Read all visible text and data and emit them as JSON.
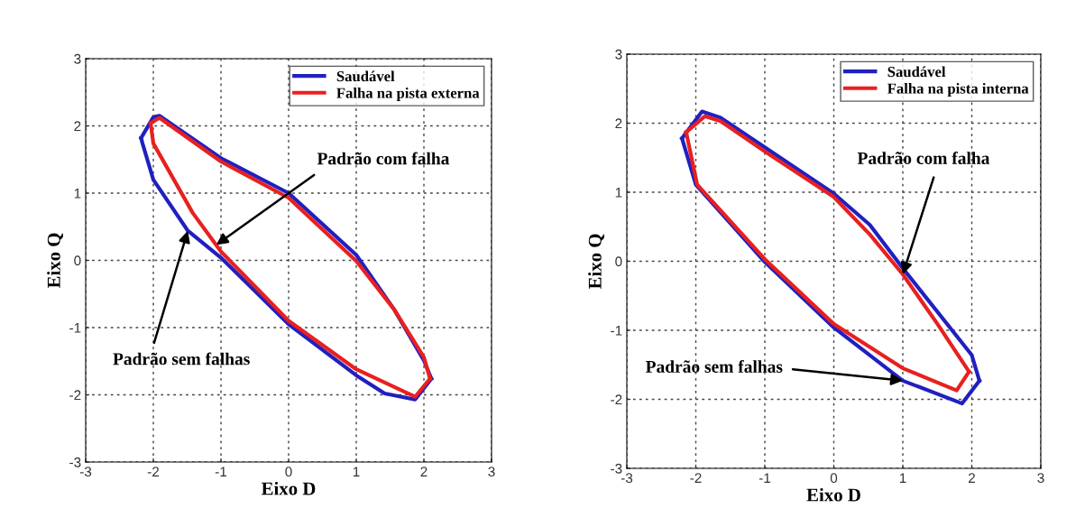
{
  "chart_data": [
    {
      "type": "line",
      "xlabel": "Eixo D",
      "ylabel": "Eixo Q",
      "xlim": [
        -3,
        3
      ],
      "ylim": [
        -3,
        3
      ],
      "xticks": [
        -3,
        -2,
        -1,
        0,
        1,
        2,
        3
      ],
      "yticks": [
        -3,
        -2,
        -1,
        0,
        1,
        2,
        3
      ],
      "grid": true,
      "legend": "top right",
      "series": [
        {
          "name": "Saudável",
          "color": "#2020c0",
          "x": [
            -2.18,
            -2.0,
            -1.91,
            -1.0,
            0.0,
            1.0,
            1.56,
            2.0,
            2.11
          ],
          "values": [
            1.82,
            2.13,
            2.15,
            1.52,
            1.0,
            0.08,
            -0.73,
            -1.49,
            -1.76
          ]
        },
        {
          "color": "#2020c0",
          "x": [
            -2.18,
            -2.16,
            -2.0,
            -1.49,
            -1.0,
            0.0,
            1.0,
            1.42,
            1.87,
            2.11
          ],
          "values": [
            1.82,
            1.74,
            1.2,
            0.44,
            0.04,
            -0.95,
            -1.71,
            -1.98,
            -2.07,
            -1.76
          ]
        },
        {
          "name": "Falha na pista externa",
          "color": "#e82020",
          "x": [
            -2.04,
            -1.91,
            -1.0,
            0.0,
            1.0,
            1.56,
            2.0,
            2.09
          ],
          "values": [
            2.04,
            2.12,
            1.47,
            0.93,
            -0.01,
            -0.73,
            -1.44,
            -1.76
          ]
        },
        {
          "color": "#e82020",
          "x": [
            -2.04,
            -2.0,
            -1.42,
            -1.0,
            0.0,
            1.0,
            1.87,
            2.09
          ],
          "values": [
            2.04,
            1.74,
            0.71,
            0.13,
            -0.9,
            -1.62,
            -2.03,
            -1.76
          ]
        }
      ],
      "annotations": [
        {
          "text": "Padrão com falha",
          "x": -1.07,
          "y": 0.23
        },
        {
          "text": "Padrão sem falhas",
          "x": -1.49,
          "y": 0.44
        }
      ]
    },
    {
      "type": "line",
      "xlabel": "Eixo D",
      "ylabel": "Eixo Q",
      "xlim": [
        -3,
        3
      ],
      "ylim": [
        -3,
        3
      ],
      "xticks": [
        -3,
        -2,
        -1,
        0,
        1,
        2,
        3
      ],
      "yticks": [
        -3,
        -2,
        -1,
        0,
        1,
        2,
        3
      ],
      "grid": true,
      "legend": "top right",
      "series": [
        {
          "name": "Saudável",
          "color": "#2020c0",
          "x": [
            -2.2,
            -1.91,
            -1.64,
            -1.0,
            0.0,
            0.52,
            1.0,
            2.0,
            2.11
          ],
          "values": [
            1.78,
            2.17,
            2.08,
            1.65,
            0.98,
            0.53,
            -0.1,
            -1.36,
            -1.73
          ]
        },
        {
          "color": "#2020c0",
          "x": [
            -2.2,
            -2.0,
            -1.0,
            0.0,
            1.0,
            1.86,
            2.11
          ],
          "values": [
            1.78,
            1.11,
            -0.01,
            -0.96,
            -1.73,
            -2.06,
            -1.73
          ]
        },
        {
          "name": "Falha na pista interna",
          "color": "#e82020",
          "x": [
            -2.14,
            -1.87,
            -1.64,
            -1.0,
            0.0,
            0.52,
            1.0,
            1.51,
            1.96
          ],
          "values": [
            1.87,
            2.1,
            2.03,
            1.59,
            0.93,
            0.39,
            -0.19,
            -0.92,
            -1.6
          ]
        },
        {
          "color": "#e82020",
          "x": [
            -2.14,
            -1.98,
            -1.0,
            0.0,
            1.0,
            1.78,
            1.96
          ],
          "values": [
            1.87,
            1.11,
            0.03,
            -0.91,
            -1.55,
            -1.87,
            -1.6
          ]
        }
      ],
      "annotations": [
        {
          "text": "Padrão com falha",
          "x": 1.0,
          "y": -0.19
        },
        {
          "text": "Padrão sem falhas",
          "x": 1.0,
          "y": -1.73
        }
      ]
    }
  ]
}
